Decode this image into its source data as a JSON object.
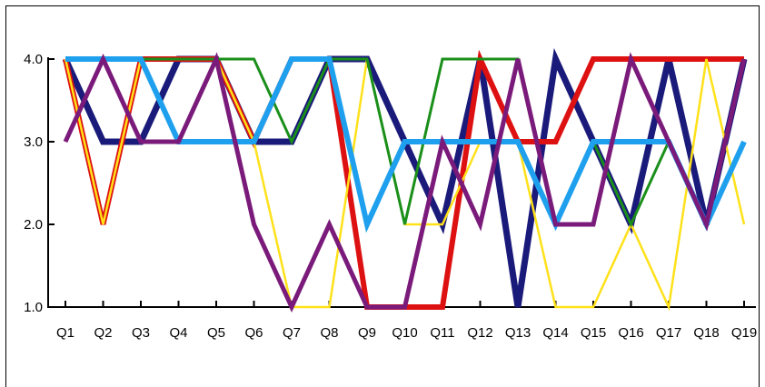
{
  "chart_data": {
    "type": "line",
    "title": "",
    "xlabel": "",
    "ylabel": "",
    "categories": [
      "Q1",
      "Q2",
      "Q3",
      "Q4",
      "Q5",
      "Q6",
      "Q7",
      "Q8",
      "Q9",
      "Q10",
      "Q11",
      "Q12",
      "Q13",
      "Q14",
      "Q15",
      "Q16",
      "Q17",
      "Q18",
      "Q19"
    ],
    "ylim": [
      1.0,
      4.0
    ],
    "yticks": [
      "1.0",
      "2.0",
      "3.0",
      "4.0"
    ],
    "grid": false,
    "series": [
      {
        "color": "#1a1a7a",
        "values": [
          4,
          3,
          3,
          4,
          4,
          3,
          3,
          4,
          4,
          3,
          2,
          4,
          1,
          4,
          3,
          2,
          4,
          2,
          4
        ]
      },
      {
        "color": "#dd1111",
        "values": [
          4,
          2,
          4,
          4,
          4,
          3,
          4,
          4,
          1,
          1,
          1,
          4,
          3,
          3,
          4,
          4,
          4,
          4,
          4
        ]
      },
      {
        "color": "#ffe11a",
        "values": [
          4,
          2,
          4,
          3,
          4,
          3,
          1,
          1,
          4,
          2,
          2,
          3,
          3,
          1,
          1,
          2,
          1,
          4,
          2
        ]
      },
      {
        "color": "#1a8f1a",
        "values": [
          4,
          4,
          4,
          4,
          4,
          4,
          3,
          4,
          4,
          2,
          4,
          4,
          4,
          2,
          3,
          2,
          3,
          2,
          4
        ]
      },
      {
        "color": "#1fa0ee",
        "values": [
          4,
          4,
          4,
          3,
          3,
          3,
          4,
          4,
          2,
          3,
          3,
          3,
          3,
          2,
          3,
          3,
          3,
          2,
          3
        ]
      },
      {
        "color": "#7a1a7a",
        "values": [
          3,
          4,
          3,
          3,
          4,
          2,
          1,
          2,
          1,
          1,
          3,
          2,
          4,
          2,
          2,
          4,
          3,
          2,
          4
        ]
      }
    ]
  }
}
